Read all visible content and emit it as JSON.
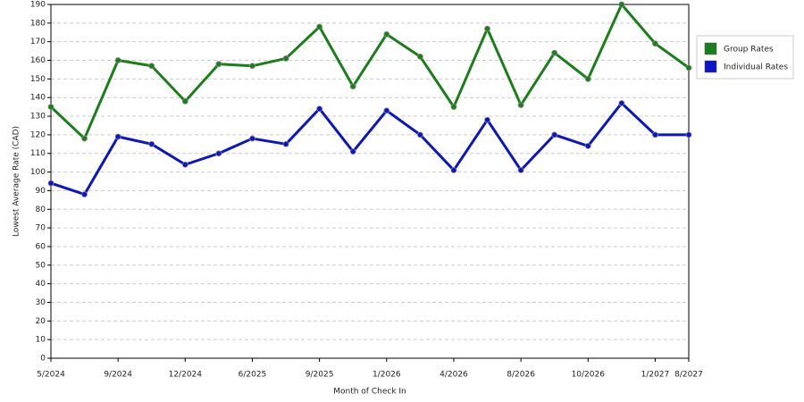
{
  "chart_data": {
    "type": "line",
    "x_label": "Month of Check In",
    "y_label": "Lowest Average Rate (CAD)",
    "categories": [
      "5/2024",
      null,
      "9/2024",
      null,
      "12/2024",
      null,
      "6/2025",
      null,
      "9/2025",
      null,
      "1/2026",
      null,
      "4/2026",
      null,
      "8/2026",
      null,
      "10/2026",
      null,
      "1/2027",
      "8/2027"
    ],
    "series": [
      {
        "name": "Group Rates",
        "color": "#1a7f1a",
        "values": [
          135,
          118,
          160,
          157,
          138,
          158,
          157,
          161,
          178,
          146,
          174,
          162,
          135,
          177,
          136,
          164,
          150,
          190,
          169,
          156
        ]
      },
      {
        "name": "Individual Rates",
        "color": "#0a14c8",
        "values": [
          94,
          88,
          119,
          115,
          104,
          110,
          118,
          115,
          134,
          111,
          133,
          120,
          101,
          128,
          101,
          120,
          114,
          137,
          120,
          120
        ]
      }
    ],
    "ylim": [
      0,
      190
    ],
    "yticks": [
      0,
      10,
      20,
      30,
      40,
      50,
      60,
      70,
      80,
      90,
      100,
      110,
      120,
      130,
      140,
      150,
      160,
      170,
      180,
      190
    ],
    "grid": true,
    "legend": "right"
  }
}
